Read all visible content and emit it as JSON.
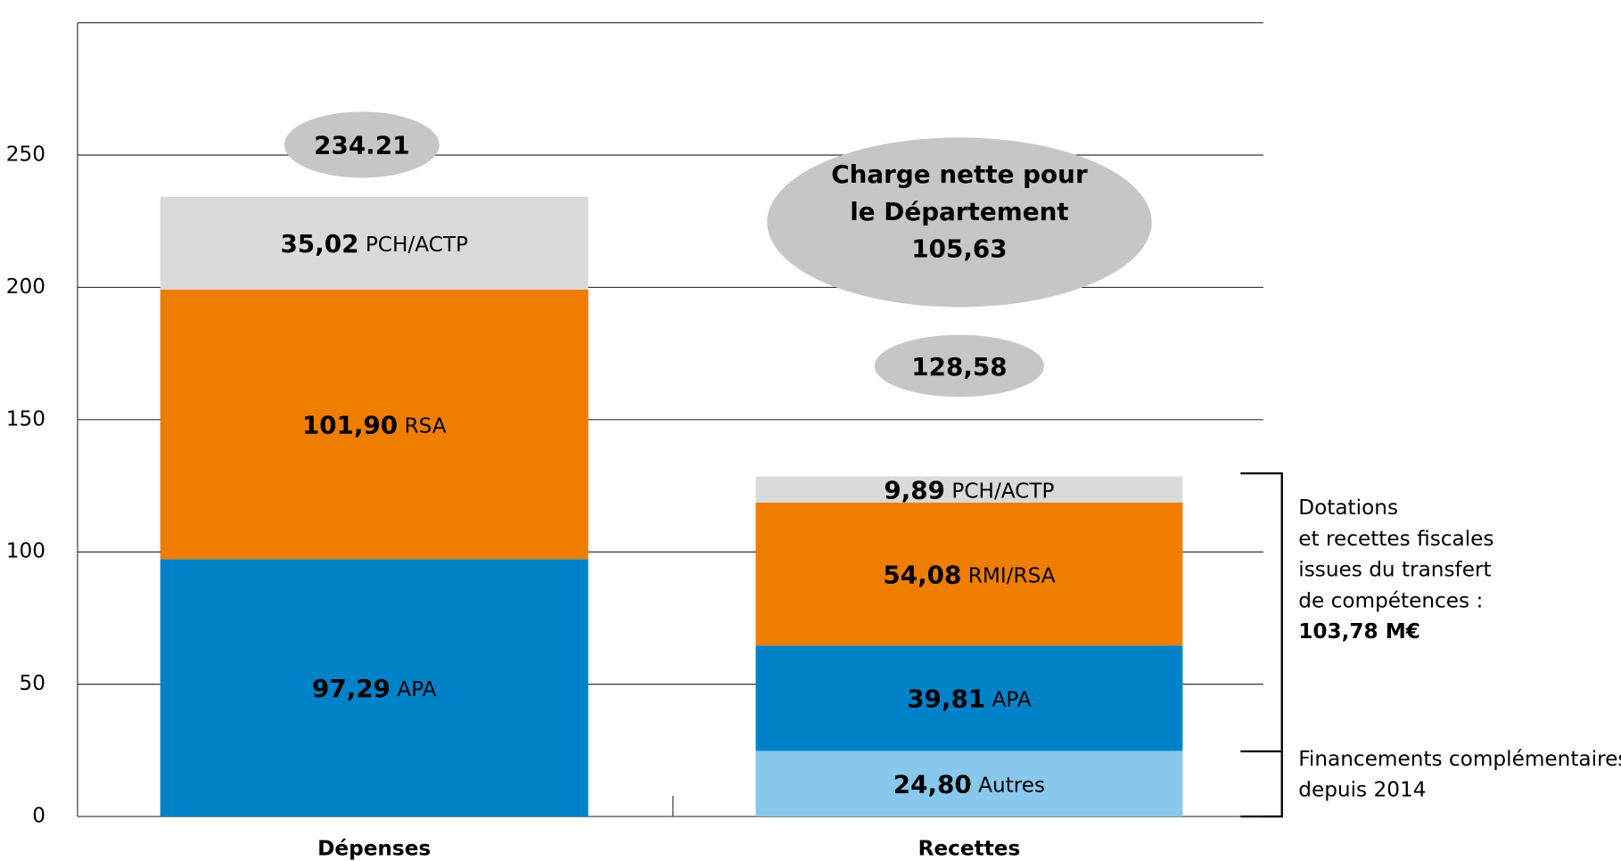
{
  "chart_data": {
    "type": "stacked-bar",
    "categories": [
      "Dépenses",
      "Recettes"
    ],
    "bars": [
      {
        "segments": [
          {
            "label": "APA",
            "value": 97.29,
            "value_label": "97,29",
            "color": "#0082c8"
          },
          {
            "label": "RSA",
            "value": 101.9,
            "value_label": "101,90",
            "color": "#ef7d00"
          },
          {
            "label": "PCH/ACTP",
            "value": 35.02,
            "value_label": "35,02",
            "color": "#d9dadb"
          }
        ],
        "total": 234.21,
        "total_label": "234.21"
      },
      {
        "segments": [
          {
            "label": "Autres",
            "value": 24.8,
            "value_label": "24,80",
            "color": "#87c8ec"
          },
          {
            "label": "APA",
            "value": 39.81,
            "value_label": "39,81",
            "color": "#0082c8"
          },
          {
            "label": "RMI/RSA",
            "value": 54.08,
            "value_label": "54,08",
            "color": "#ef7d00"
          },
          {
            "label": "PCH/ACTP",
            "value": 9.89,
            "value_label": "9,89",
            "color": "#d9dadb"
          }
        ],
        "total": 128.58,
        "total_label": "128,58"
      }
    ],
    "ylim": [
      0,
      300
    ],
    "yticks": [
      0,
      50,
      100,
      150,
      200,
      250
    ],
    "grid": true,
    "net_charge": {
      "lines": [
        "Charge nette pour",
        "le Département"
      ],
      "value": 105.63,
      "value_label": "105,63"
    },
    "annotations": [
      {
        "lines": [
          "Dotations",
          "et recettes fiscales",
          "issues du transfert",
          "de compétences :"
        ],
        "bold": "103,78 M€"
      },
      {
        "lines": [
          "Financements complémentaires",
          "depuis 2014"
        ]
      }
    ]
  }
}
